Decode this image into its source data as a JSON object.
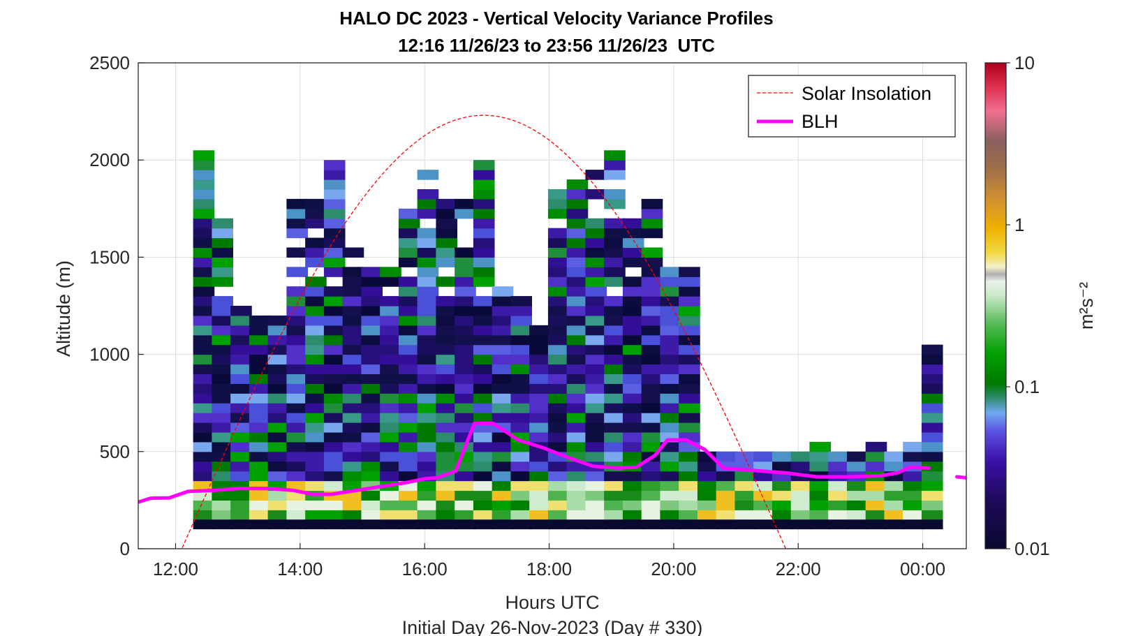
{
  "chart_data": {
    "type": "heatmap",
    "title": "HALO DC 2023 - Vertical Velocity Variance Profiles",
    "subtitle": "12:16 11/26/23 to 23:56 11/26/23  UTC",
    "xlabel": "Hours UTC",
    "ylabel": "Altitude (m)",
    "footer": "Initial Day 26-Nov-2023 (Day # 330)",
    "colorbar_label": "m²s⁻²",
    "colorbar_scale": "log",
    "colorbar_range": [
      0.01,
      10
    ],
    "colorbar_ticks": [
      "10",
      "1",
      "0.1",
      "0.01"
    ],
    "xlim_hours": [
      11.4,
      24.7
    ],
    "ylim": [
      0,
      2500
    ],
    "x_ticks": [
      "12:00",
      "14:00",
      "16:00",
      "18:00",
      "20:00",
      "22:00",
      "00:00"
    ],
    "y_ticks": [
      "0",
      "500",
      "1000",
      "1500",
      "2000",
      "2500"
    ],
    "grid": true,
    "legend": {
      "placement": "top-right",
      "entries": [
        "Solar Insolation",
        "BLH"
      ]
    },
    "colors": {
      "blh": "#ff00ff",
      "solar": "#ff0000"
    },
    "solar_insolation": {
      "sunrise_hour": 12.1,
      "sunset_hour": 21.8,
      "peak_hour": 16.95,
      "peak_altitude_m": 2230
    },
    "blh": [
      [
        11.4,
        240
      ],
      [
        11.6,
        260
      ],
      [
        11.9,
        262
      ],
      [
        12.2,
        295
      ],
      [
        12.6,
        300
      ],
      [
        13.0,
        310
      ],
      [
        13.5,
        310
      ],
      [
        13.9,
        300
      ],
      [
        14.2,
        280
      ],
      [
        14.5,
        280
      ],
      [
        14.9,
        300
      ],
      [
        15.3,
        320
      ],
      [
        15.7,
        340
      ],
      [
        16.0,
        360
      ],
      [
        16.2,
        365
      ],
      [
        16.5,
        400
      ],
      [
        16.8,
        645
      ],
      [
        17.1,
        645
      ],
      [
        17.5,
        560
      ],
      [
        17.9,
        520
      ],
      [
        18.3,
        470
      ],
      [
        18.7,
        425
      ],
      [
        19.1,
        415
      ],
      [
        19.4,
        420
      ],
      [
        19.7,
        480
      ],
      [
        19.9,
        560
      ],
      [
        20.2,
        560
      ],
      [
        20.5,
        510
      ],
      [
        20.8,
        415
      ],
      [
        21.2,
        405
      ],
      [
        21.8,
        390
      ],
      [
        22.3,
        370
      ],
      [
        22.8,
        370
      ],
      [
        23.3,
        375
      ],
      [
        23.6,
        390
      ],
      [
        23.8,
        420
      ],
      [
        24.1,
        415
      ]
    ],
    "blh_tail": [
      [
        24.55,
        370
      ],
      [
        24.7,
        365
      ]
    ],
    "profiles": [
      {
        "hour": 12.45,
        "top": 2010
      },
      {
        "hour": 12.75,
        "top": 1680
      },
      {
        "hour": 13.05,
        "top": 1240
      },
      {
        "hour": 13.35,
        "top": 1190
      },
      {
        "hour": 13.65,
        "top": 1200
      },
      {
        "hour": 13.95,
        "top": 1780
      },
      {
        "hour": 14.25,
        "top": 1780
      },
      {
        "hour": 14.55,
        "top": 1980
      },
      {
        "hour": 14.85,
        "top": 1530
      },
      {
        "hour": 15.15,
        "top": 1440
      },
      {
        "hour": 15.45,
        "top": 1440
      },
      {
        "hour": 15.75,
        "top": 1730
      },
      {
        "hour": 16.05,
        "top": 1920
      },
      {
        "hour": 16.35,
        "top": 1780
      },
      {
        "hour": 16.65,
        "top": 1780
      },
      {
        "hour": 16.95,
        "top": 1980
      },
      {
        "hour": 17.25,
        "top": 1340
      },
      {
        "hour": 17.55,
        "top": 1300
      },
      {
        "hour": 17.85,
        "top": 1150
      },
      {
        "hour": 18.15,
        "top": 1820
      },
      {
        "hour": 18.45,
        "top": 1870
      },
      {
        "hour": 18.75,
        "top": 1920
      },
      {
        "hour": 19.05,
        "top": 2010
      },
      {
        "hour": 19.35,
        "top": 1820
      },
      {
        "hour": 19.65,
        "top": 1780
      },
      {
        "hour": 19.95,
        "top": 1440
      },
      {
        "hour": 20.25,
        "top": 1440
      },
      {
        "hour": 20.55,
        "top": 470
      },
      {
        "hour": 20.85,
        "top": 470
      },
      {
        "hour": 21.15,
        "top": 470
      },
      {
        "hour": 21.45,
        "top": 470
      },
      {
        "hour": 21.75,
        "top": 470
      },
      {
        "hour": 22.05,
        "top": 470
      },
      {
        "hour": 22.35,
        "top": 520
      },
      {
        "hour": 22.65,
        "top": 470
      },
      {
        "hour": 22.95,
        "top": 470
      },
      {
        "hour": 23.25,
        "top": 520
      },
      {
        "hour": 23.55,
        "top": 470
      },
      {
        "hour": 23.85,
        "top": 520
      },
      {
        "hour": 24.15,
        "top": 1010
      }
    ]
  }
}
